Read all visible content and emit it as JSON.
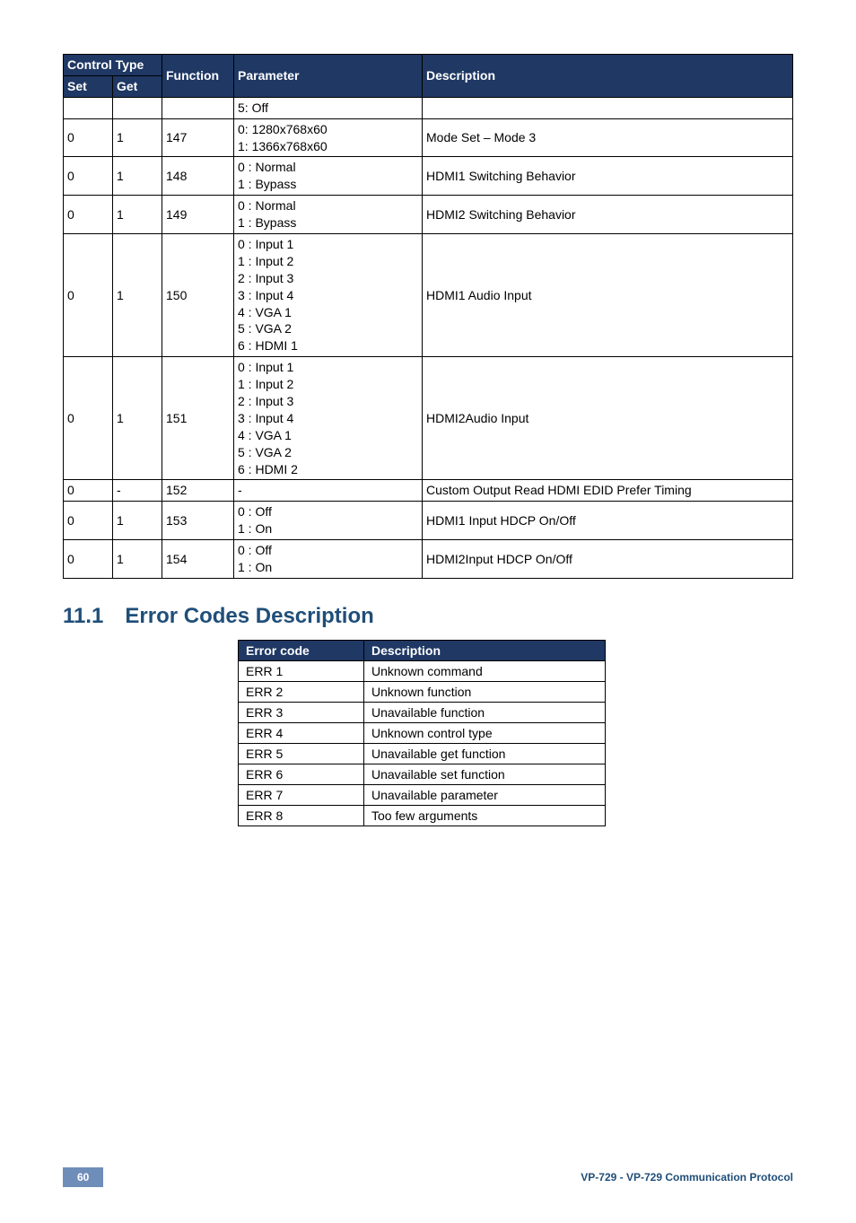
{
  "mainTable": {
    "headers": {
      "controlType": "Control Type",
      "set": "Set",
      "get": "Get",
      "function": "Function",
      "parameter": "Parameter",
      "description": "Description"
    },
    "rows": [
      {
        "set": "",
        "get": "",
        "func": "",
        "param": "5: Off",
        "desc": ""
      },
      {
        "set": "0",
        "get": "1",
        "func": "147",
        "param": "0: 1280x768x60\n1: 1366x768x60",
        "desc": "Mode Set – Mode 3"
      },
      {
        "set": "0",
        "get": "1",
        "func": "148",
        "param": "0 : Normal\n1 : Bypass",
        "desc": "HDMI1 Switching Behavior"
      },
      {
        "set": "0",
        "get": "1",
        "func": "149",
        "param": "0 : Normal\n1 : Bypass",
        "desc": "HDMI2 Switching Behavior"
      },
      {
        "set": "0",
        "get": "1",
        "func": "150",
        "param": "0 : Input 1\n1 : Input 2\n2 : Input 3\n3 : Input 4\n4 : VGA 1\n5 : VGA 2\n6 : HDMI 1",
        "desc": "HDMI1 Audio Input"
      },
      {
        "set": "0",
        "get": "1",
        "func": "151",
        "param": "0 : Input 1\n1 : Input 2\n2 : Input 3\n3 : Input 4\n4 : VGA 1\n5 : VGA 2\n6 : HDMI 2",
        "desc": "HDMI2Audio Input"
      },
      {
        "set": "0",
        "get": "-",
        "func": "152",
        "param": "-",
        "desc": "Custom Output Read HDMI EDID Prefer Timing"
      },
      {
        "set": "0",
        "get": "1",
        "func": "153",
        "param": "0 : Off\n1 : On",
        "desc": "HDMI1 Input HDCP On/Off"
      },
      {
        "set": "0",
        "get": "1",
        "func": "154",
        "param": "0 : Off\n1 : On",
        "desc": "HDMI2Input HDCP On/Off"
      }
    ]
  },
  "section": {
    "number": "11.1",
    "title": "Error Codes Description"
  },
  "errTable": {
    "headers": {
      "code": "Error code",
      "desc": "Description"
    },
    "rows": [
      {
        "code": "ERR 1",
        "desc": "Unknown command"
      },
      {
        "code": "ERR 2",
        "desc": "Unknown function"
      },
      {
        "code": "ERR 3",
        "desc": "Unavailable function"
      },
      {
        "code": "ERR 4",
        "desc": "Unknown control type"
      },
      {
        "code": "ERR 5",
        "desc": "Unavailable get function"
      },
      {
        "code": "ERR 6",
        "desc": "Unavailable set function"
      },
      {
        "code": "ERR 7",
        "desc": "Unavailable parameter"
      },
      {
        "code": "ERR 8",
        "desc": "Too few arguments"
      }
    ]
  },
  "footer": {
    "pageNum": "60",
    "docTitle": "VP-729 - VP-729 Communication Protocol"
  }
}
